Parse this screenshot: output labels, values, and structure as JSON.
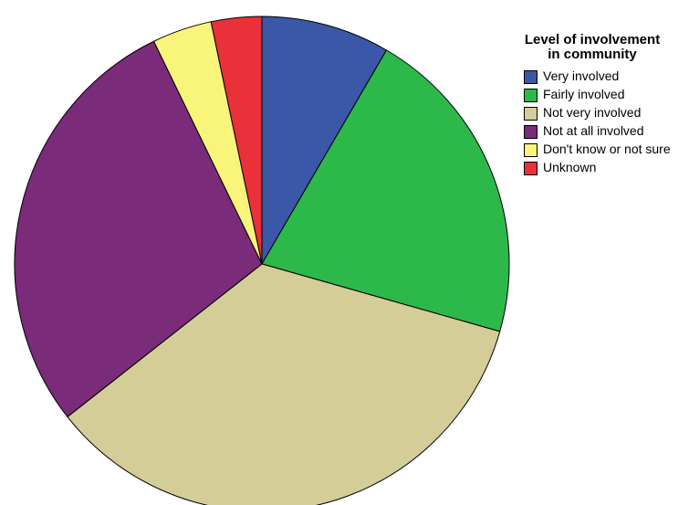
{
  "chart_data": {
    "type": "pie",
    "legend_title": "Level of involvement in community",
    "legend_position": "right",
    "slices": [
      {
        "label": "Very involved",
        "value": 8.4,
        "color": "#3A57A8"
      },
      {
        "label": "Fairly involved",
        "value": 21.0,
        "color": "#2DB84A"
      },
      {
        "label": "Not very involved",
        "value": 35.0,
        "color": "#D4CD97"
      },
      {
        "label": "Not at all involved",
        "value": 28.4,
        "color": "#7A2B7A"
      },
      {
        "label": "Don't know or not sure",
        "value": 3.9,
        "color": "#F8F57A"
      },
      {
        "label": "Unknown",
        "value": 3.3,
        "color": "#EA3038"
      }
    ]
  }
}
